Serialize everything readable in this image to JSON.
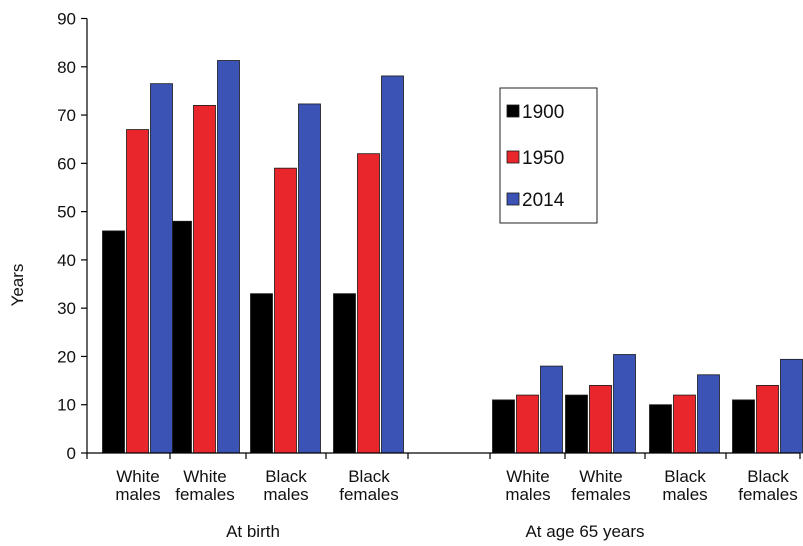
{
  "chart_data": {
    "type": "bar",
    "ylabel": "Years",
    "ylim": [
      0,
      90
    ],
    "yticks": [
      0,
      10,
      20,
      30,
      40,
      50,
      60,
      70,
      80,
      90
    ],
    "grid": false,
    "legend_position": "upper-middle",
    "categories": [
      [
        "White",
        "males"
      ],
      [
        "White",
        "females"
      ],
      [
        "Black",
        "males"
      ],
      [
        "Black",
        "females"
      ],
      [
        "White",
        "males"
      ],
      [
        "White",
        "females"
      ],
      [
        "Black",
        "males"
      ],
      [
        "Black",
        "females"
      ]
    ],
    "groups": [
      {
        "label": "At birth",
        "categories": [
          0,
          1,
          2,
          3
        ]
      },
      {
        "label": "At age 65 years",
        "categories": [
          4,
          5,
          6,
          7
        ]
      }
    ],
    "series": [
      {
        "name": "1900",
        "color": "#000000",
        "values": [
          46,
          48,
          33,
          33,
          11,
          12,
          10,
          11
        ]
      },
      {
        "name": "1950",
        "color": "#e8262b",
        "values": [
          67,
          72,
          59,
          62,
          12,
          14,
          12,
          14
        ]
      },
      {
        "name": "2014",
        "color": "#3b53b5",
        "values": [
          76.5,
          81.3,
          72.3,
          78.1,
          18,
          20.4,
          16.2,
          19.4
        ]
      }
    ]
  }
}
